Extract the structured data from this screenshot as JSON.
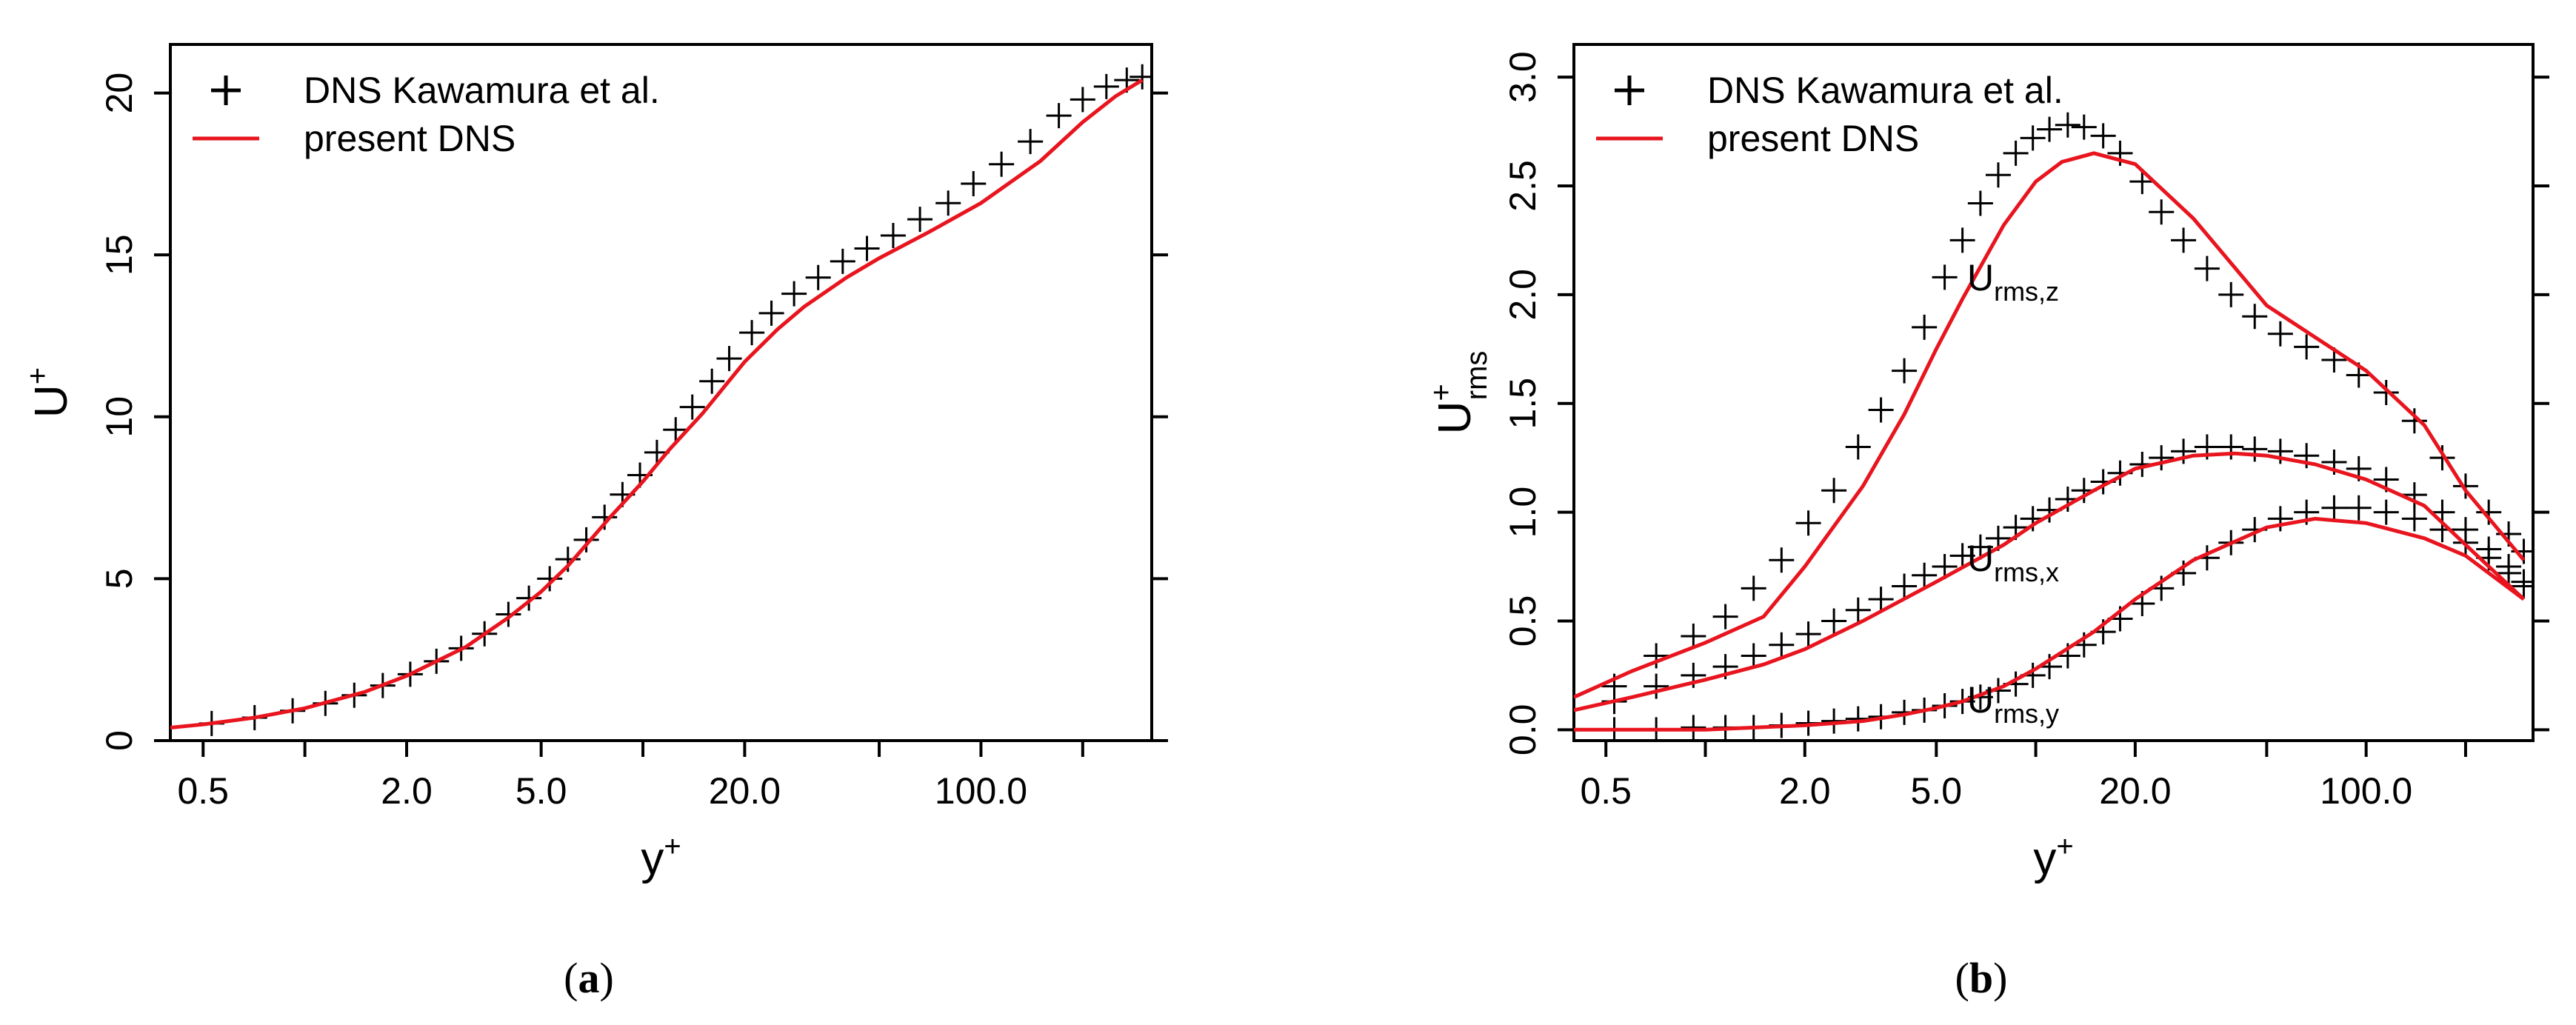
{
  "figure": {
    "captions": [
      {
        "open": "(",
        "letter": "a",
        "close": ")"
      },
      {
        "open": "(",
        "letter": "b",
        "close": ")"
      }
    ]
  },
  "chart_data": [
    {
      "id": "a",
      "type": "line",
      "xscale": "log",
      "xlim": [
        0.4,
        320
      ],
      "ylim": [
        0,
        21.5
      ],
      "xticks": [
        0.5,
        2.0,
        5.0,
        20.0,
        100.0
      ],
      "xtick_labels": [
        "0.5",
        "2.0",
        "5.0",
        "20.0",
        "100.0"
      ],
      "xminor": [
        1,
        10,
        50,
        200
      ],
      "yticks": [
        0,
        5,
        10,
        15,
        20
      ],
      "ytick_labels": [
        "0",
        "5",
        "10",
        "15",
        "20"
      ],
      "xlabel": {
        "base": "y",
        "sup": "+"
      },
      "ylabel": {
        "base": "U",
        "sup": "+"
      },
      "legend": {
        "position": "top-left",
        "entries": [
          {
            "symbol": "+",
            "label": "DNS Kawamura et al.",
            "color": "#000000"
          },
          {
            "symbol": "line",
            "label": "present DNS",
            "color": "#e8141e"
          }
        ]
      },
      "series": [
        {
          "name": "present DNS",
          "style": "line",
          "color": "#e8141e",
          "x": [
            0.4,
            0.5,
            0.7,
            1,
            1.5,
            2,
            3,
            4,
            5,
            6,
            7,
            8,
            10,
            12,
            15,
            20,
            25,
            30,
            40,
            50,
            70,
            100,
            150,
            200,
            250,
            300
          ],
          "y": [
            0.4,
            0.5,
            0.7,
            1.0,
            1.5,
            2.0,
            2.9,
            3.8,
            4.6,
            5.4,
            6.2,
            6.9,
            8.0,
            9.0,
            10.1,
            11.7,
            12.7,
            13.4,
            14.3,
            14.9,
            15.7,
            16.6,
            17.9,
            19.1,
            19.9,
            20.4
          ]
        },
        {
          "name": "DNS Kawamura et al.",
          "style": "plus",
          "color": "#000000",
          "x": [
            0.53,
            0.71,
            0.92,
            1.15,
            1.4,
            1.7,
            2.05,
            2.45,
            2.9,
            3.4,
            4.0,
            4.6,
            5.3,
            6.0,
            6.8,
            7.7,
            8.7,
            9.8,
            11,
            12.5,
            14,
            16,
            18,
            21,
            24,
            28,
            33,
            39,
            46,
            55,
            66,
            80,
            95,
            115,
            140,
            170,
            200,
            235,
            270,
            300
          ],
          "y": [
            0.53,
            0.71,
            0.92,
            1.15,
            1.4,
            1.7,
            2.05,
            2.45,
            2.85,
            3.3,
            3.9,
            4.4,
            5.0,
            5.6,
            6.2,
            6.9,
            7.6,
            8.2,
            8.9,
            9.6,
            10.3,
            11.1,
            11.8,
            12.6,
            13.2,
            13.8,
            14.3,
            14.8,
            15.2,
            15.6,
            16.1,
            16.6,
            17.2,
            17.8,
            18.5,
            19.3,
            19.8,
            20.2,
            20.4,
            20.5
          ]
        }
      ]
    },
    {
      "id": "b",
      "type": "line",
      "xscale": "log",
      "xlim": [
        0.4,
        320
      ],
      "ylim": [
        -0.05,
        3.15
      ],
      "xticks": [
        0.5,
        2.0,
        5.0,
        20.0,
        100.0
      ],
      "xtick_labels": [
        "0.5",
        "2.0",
        "5.0",
        "20.0",
        "100.0"
      ],
      "xminor": [
        1,
        10,
        50,
        200
      ],
      "yticks": [
        0,
        0.5,
        1,
        1.5,
        2,
        2.5,
        3
      ],
      "ytick_labels": [
        "0.0",
        "0.5",
        "1.0",
        "1.5",
        "2.0",
        "2.5",
        "3.0"
      ],
      "xlabel": {
        "base": "y",
        "sup": "+"
      },
      "ylabel": {
        "base": "U",
        "sup": "+",
        "sub": "rms"
      },
      "legend": {
        "position": "top-left",
        "entries": [
          {
            "symbol": "+",
            "label": "DNS Kawamura et al.",
            "color": "#000000"
          },
          {
            "symbol": "line",
            "label": "present DNS",
            "color": "#e8141e"
          }
        ]
      },
      "annotations": [
        {
          "base": "U",
          "sub": "rms,z",
          "x": 6.2,
          "y": 2.02
        },
        {
          "base": "U",
          "sub": "rms,x",
          "x": 6.2,
          "y": 0.73
        },
        {
          "base": "U",
          "sub": "rms,y",
          "x": 6.2,
          "y": 0.08
        }
      ],
      "series": [
        {
          "name": "present DNS U_rms,z",
          "style": "line",
          "color": "#e8141e",
          "x": [
            0.4,
            0.6,
            1,
            1.5,
            2,
            3,
            4,
            5,
            6,
            8,
            10,
            12,
            15,
            20,
            30,
            50,
            100,
            150,
            200,
            300
          ],
          "y": [
            0.15,
            0.27,
            0.4,
            0.52,
            0.75,
            1.12,
            1.45,
            1.75,
            1.98,
            2.32,
            2.52,
            2.61,
            2.65,
            2.6,
            2.35,
            1.95,
            1.65,
            1.4,
            1.1,
            0.78
          ]
        },
        {
          "name": "present DNS U_rms,x",
          "style": "line",
          "color": "#e8141e",
          "x": [
            0.4,
            0.6,
            1,
            1.5,
            2,
            3,
            5,
            8,
            10,
            15,
            20,
            30,
            40,
            50,
            70,
            100,
            150,
            200,
            300
          ],
          "y": [
            0.09,
            0.15,
            0.23,
            0.3,
            0.37,
            0.5,
            0.68,
            0.85,
            0.95,
            1.1,
            1.2,
            1.26,
            1.27,
            1.26,
            1.22,
            1.15,
            1.03,
            0.85,
            0.6
          ]
        },
        {
          "name": "present DNS U_rms,y",
          "style": "line",
          "color": "#e8141e",
          "x": [
            0.4,
            1,
            2,
            3,
            4,
            5,
            6,
            8,
            10,
            15,
            20,
            30,
            50,
            70,
            100,
            150,
            200,
            300
          ],
          "y": [
            0.0,
            0.0,
            0.02,
            0.04,
            0.07,
            0.1,
            0.13,
            0.2,
            0.28,
            0.45,
            0.6,
            0.78,
            0.93,
            0.97,
            0.95,
            0.88,
            0.8,
            0.6
          ]
        },
        {
          "name": "DNS Kawamura et al. U_rms,z",
          "style": "plus",
          "color": "#000000",
          "x": [
            0.53,
            0.71,
            0.92,
            1.15,
            1.4,
            1.7,
            2.05,
            2.45,
            2.9,
            3.4,
            4.0,
            4.6,
            5.3,
            6.0,
            6.8,
            7.7,
            8.7,
            9.8,
            11,
            12.5,
            14,
            16,
            18,
            21,
            24,
            28,
            33,
            39,
            46,
            55,
            66,
            80,
            95,
            115,
            140,
            170,
            200,
            235,
            270,
            300
          ],
          "y": [
            0.2,
            0.34,
            0.43,
            0.52,
            0.65,
            0.78,
            0.95,
            1.1,
            1.3,
            1.47,
            1.65,
            1.85,
            2.08,
            2.25,
            2.42,
            2.55,
            2.65,
            2.72,
            2.76,
            2.78,
            2.77,
            2.73,
            2.65,
            2.52,
            2.38,
            2.25,
            2.12,
            2.0,
            1.9,
            1.82,
            1.76,
            1.7,
            1.63,
            1.55,
            1.42,
            1.25,
            1.12,
            1.0,
            0.9,
            0.82
          ]
        },
        {
          "name": "DNS Kawamura et al. U_rms,x",
          "style": "plus",
          "color": "#000000",
          "x": [
            0.53,
            0.71,
            0.92,
            1.15,
            1.4,
            1.7,
            2.05,
            2.45,
            2.9,
            3.4,
            4.0,
            4.6,
            5.3,
            6.0,
            6.8,
            7.7,
            8.7,
            9.8,
            11,
            12.5,
            14,
            16,
            18,
            21,
            24,
            28,
            33,
            39,
            46,
            55,
            66,
            80,
            95,
            115,
            140,
            170,
            200,
            235,
            270,
            300
          ],
          "y": [
            0.13,
            0.2,
            0.25,
            0.29,
            0.34,
            0.39,
            0.44,
            0.5,
            0.55,
            0.6,
            0.66,
            0.71,
            0.75,
            0.8,
            0.84,
            0.88,
            0.93,
            0.97,
            1.01,
            1.06,
            1.1,
            1.14,
            1.18,
            1.22,
            1.25,
            1.28,
            1.3,
            1.3,
            1.29,
            1.28,
            1.26,
            1.23,
            1.2,
            1.15,
            1.08,
            1.0,
            0.92,
            0.83,
            0.75,
            0.68
          ]
        },
        {
          "name": "DNS Kawamura et al. U_rms,y",
          "style": "plus",
          "color": "#000000",
          "x": [
            0.53,
            0.71,
            0.92,
            1.15,
            1.4,
            1.7,
            2.05,
            2.45,
            2.9,
            3.4,
            4.0,
            4.6,
            5.3,
            6.0,
            6.8,
            7.7,
            8.7,
            9.8,
            11,
            12.5,
            14,
            16,
            18,
            21,
            24,
            28,
            33,
            39,
            46,
            55,
            66,
            80,
            95,
            115,
            140,
            170,
            200,
            235,
            270,
            300
          ],
          "y": [
            0.0,
            0.0,
            0.01,
            0.01,
            0.01,
            0.02,
            0.03,
            0.04,
            0.05,
            0.06,
            0.08,
            0.09,
            0.11,
            0.13,
            0.15,
            0.18,
            0.21,
            0.25,
            0.29,
            0.34,
            0.39,
            0.45,
            0.51,
            0.58,
            0.65,
            0.72,
            0.79,
            0.86,
            0.92,
            0.97,
            1.0,
            1.02,
            1.02,
            1.0,
            0.97,
            0.92,
            0.86,
            0.79,
            0.72,
            0.66
          ]
        }
      ]
    }
  ]
}
